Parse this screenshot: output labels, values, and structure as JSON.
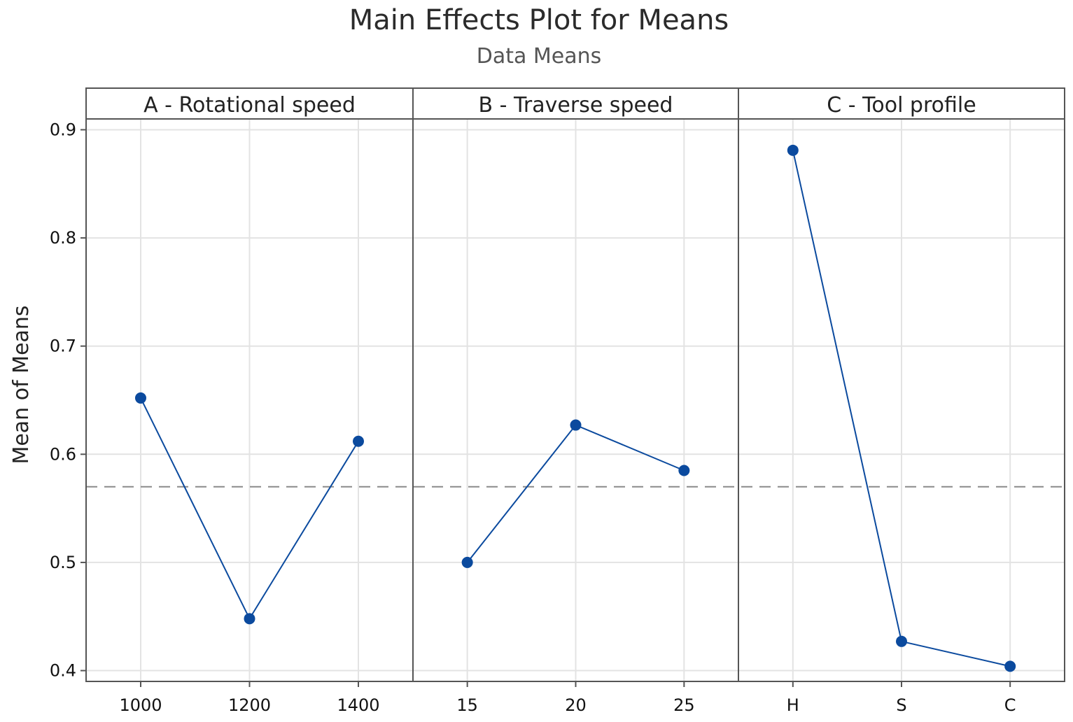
{
  "chart_data": {
    "type": "line",
    "title": "Main Effects Plot for Means",
    "subtitle": "Data Means",
    "ylabel": "Mean of Means",
    "ylim": [
      0.39,
      0.91
    ],
    "yticks": [
      "0.4",
      "0.5",
      "0.6",
      "0.7",
      "0.8",
      "0.9"
    ],
    "reference_line": 0.57,
    "grid": true,
    "colors": {
      "series": "#0b4a9e",
      "reference": "#8a8a8a"
    },
    "panels": [
      {
        "name": "A - Rotational speed",
        "categories": [
          "1000",
          "1200",
          "1400"
        ],
        "values": [
          0.652,
          0.448,
          0.612
        ]
      },
      {
        "name": "B - Traverse speed",
        "categories": [
          "15",
          "20",
          "25"
        ],
        "values": [
          0.5,
          0.627,
          0.585
        ]
      },
      {
        "name": "C - Tool profile",
        "categories": [
          "H",
          "S",
          "C"
        ],
        "values": [
          0.881,
          0.427,
          0.404
        ]
      }
    ]
  }
}
